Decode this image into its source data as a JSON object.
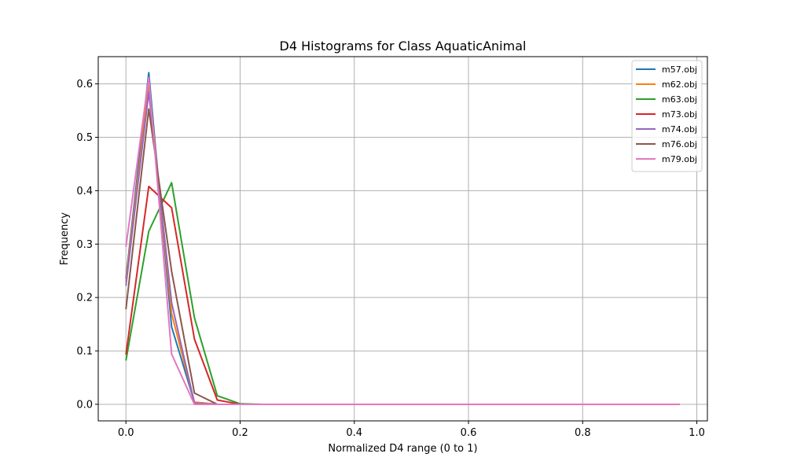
{
  "chart_data": {
    "type": "line",
    "title": "D4 Histograms for Class AquaticAnimal",
    "xlabel": "Normalized D4 range (0 to 1)",
    "ylabel": "Frequency",
    "xlim": [
      -0.0485,
      1.0185
    ],
    "ylim": [
      -0.031,
      0.651
    ],
    "xticks": [
      0.0,
      0.2,
      0.4,
      0.6,
      0.8,
      1.0
    ],
    "xtick_labels": [
      "0.0",
      "0.2",
      "0.4",
      "0.6",
      "0.8",
      "1.0"
    ],
    "yticks": [
      0.0,
      0.1,
      0.2,
      0.3,
      0.4,
      0.5,
      0.6
    ],
    "ytick_labels": [
      "0.0",
      "0.1",
      "0.2",
      "0.3",
      "0.4",
      "0.5",
      "0.6"
    ],
    "grid": true,
    "legend_position": "top-right",
    "x": [
      0.0,
      0.04,
      0.08,
      0.12,
      0.16,
      0.2,
      0.24,
      0.28,
      0.32,
      0.36,
      0.4,
      0.44,
      0.48,
      0.52,
      0.56,
      0.6,
      0.64,
      0.68,
      0.72,
      0.76,
      0.8,
      0.84,
      0.88,
      0.92,
      0.97
    ],
    "series": [
      {
        "name": "m57.obj",
        "color": "#1f77b4",
        "values": [
          0.235,
          0.621,
          0.145,
          0.004,
          0.0,
          0.0,
          0.0,
          0.0,
          0.0,
          0.0,
          0.0,
          0.0,
          0.0,
          0.0,
          0.0,
          0.0,
          0.0,
          0.0,
          0.0,
          0.0,
          0.0,
          0.0,
          0.0,
          0.0,
          0.0
        ]
      },
      {
        "name": "m62.obj",
        "color": "#ff7f0e",
        "values": [
          0.23,
          0.6,
          0.17,
          0.004,
          0.0,
          0.0,
          0.0,
          0.0,
          0.0,
          0.0,
          0.0,
          0.0,
          0.0,
          0.0,
          0.0,
          0.0,
          0.0,
          0.0,
          0.0,
          0.0,
          0.0,
          0.0,
          0.0,
          0.0,
          0.0
        ]
      },
      {
        "name": "m63.obj",
        "color": "#2ca02c",
        "values": [
          0.082,
          0.324,
          0.415,
          0.162,
          0.016,
          0.001,
          0.0,
          0.0,
          0.0,
          0.0,
          0.0,
          0.0,
          0.0,
          0.0,
          0.0,
          0.0,
          0.0,
          0.0,
          0.0,
          0.0,
          0.0,
          0.0,
          0.0,
          0.0,
          0.0
        ]
      },
      {
        "name": "m73.obj",
        "color": "#d62728",
        "values": [
          0.093,
          0.408,
          0.368,
          0.122,
          0.008,
          0.0,
          0.0,
          0.0,
          0.0,
          0.0,
          0.0,
          0.0,
          0.0,
          0.0,
          0.0,
          0.0,
          0.0,
          0.0,
          0.0,
          0.0,
          0.0,
          0.0,
          0.0,
          0.0,
          0.0
        ]
      },
      {
        "name": "m74.obj",
        "color": "#9467bd",
        "values": [
          0.222,
          0.585,
          0.19,
          0.002,
          0.0,
          0.0,
          0.0,
          0.0,
          0.0,
          0.0,
          0.0,
          0.0,
          0.0,
          0.0,
          0.0,
          0.0,
          0.0,
          0.0,
          0.0,
          0.0,
          0.0,
          0.0,
          0.0,
          0.0,
          0.0
        ]
      },
      {
        "name": "m76.obj",
        "color": "#8c564b",
        "values": [
          0.178,
          0.553,
          0.249,
          0.021,
          0.0,
          0.0,
          0.0,
          0.0,
          0.0,
          0.0,
          0.0,
          0.0,
          0.0,
          0.0,
          0.0,
          0.0,
          0.0,
          0.0,
          0.0,
          0.0,
          0.0,
          0.0,
          0.0,
          0.0,
          0.0
        ]
      },
      {
        "name": "m79.obj",
        "color": "#e377c2",
        "values": [
          0.295,
          0.612,
          0.094,
          0.0,
          0.0,
          0.0,
          0.0,
          0.0,
          0.0,
          0.0,
          0.0,
          0.0,
          0.0,
          0.0,
          0.0,
          0.0,
          0.0,
          0.0,
          0.0,
          0.0,
          0.0,
          0.0,
          0.0,
          0.0,
          0.0
        ]
      }
    ]
  }
}
